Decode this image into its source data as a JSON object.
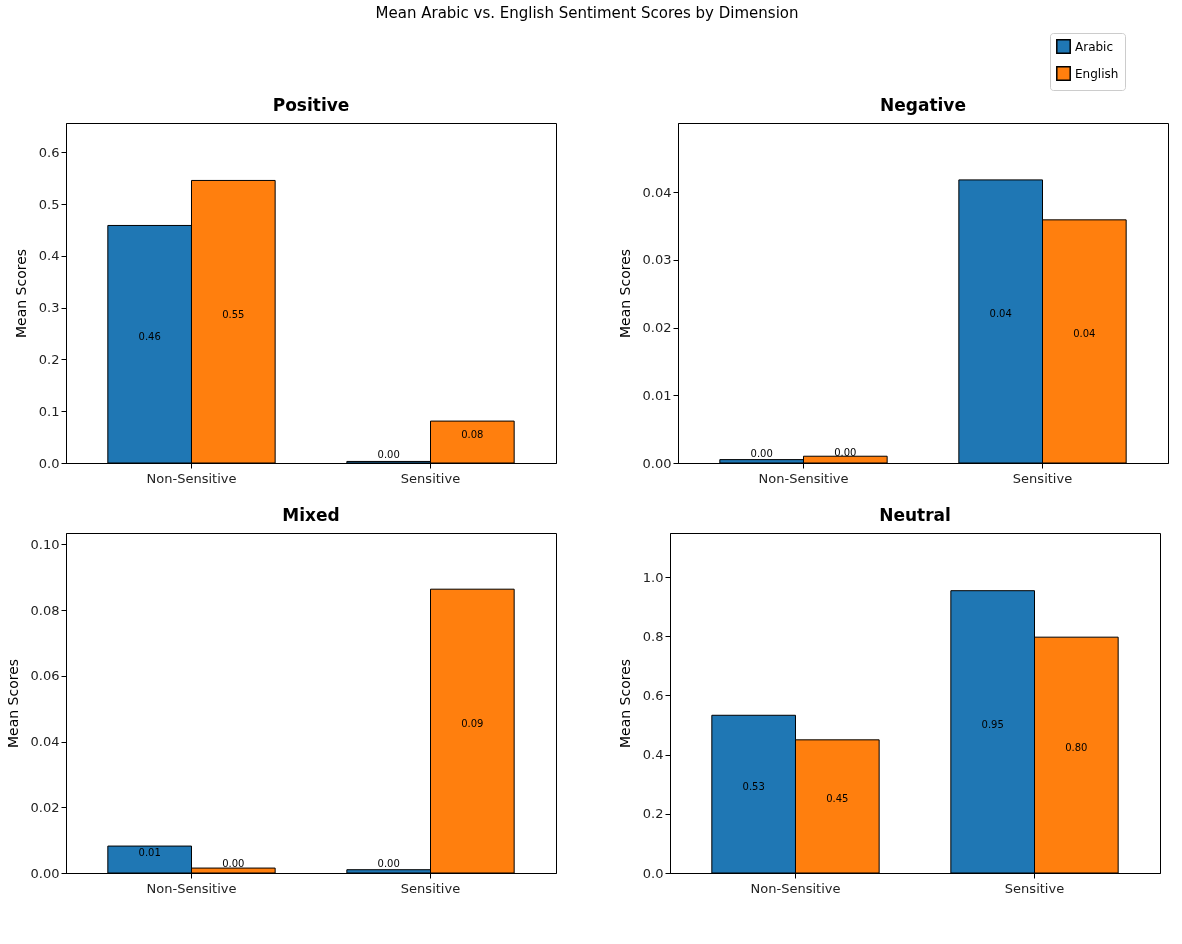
{
  "chart_data": [
    {
      "type": "bar",
      "title": "Positive",
      "annotations": [
        "Mean Arabic vs. English Sentiment Scores by Dimension"
      ],
      "ylabel": "Mean Scores",
      "categories": [
        "Non-Sensitive",
        "Sensitive"
      ],
      "legend": "top right",
      "series": [
        {
          "name": "Arabic",
          "color": "#1f77b4",
          "values": [
            0.459,
            0.003
          ],
          "value_labels": [
            "0.46",
            "0.00"
          ]
        },
        {
          "name": "English",
          "color": "#ff7f0e",
          "values": [
            0.546,
            0.081
          ],
          "value_labels": [
            "0.55",
            "0.08"
          ]
        }
      ],
      "ylim": [
        0,
        0.657
      ],
      "yticks": [
        {
          "value": 0,
          "label": "0.0"
        },
        0.1,
        0.2,
        0.3,
        0.4,
        0.5,
        0.6
      ],
      "grid": false
    },
    {
      "type": "bar",
      "title": "Negative",
      "ylabel": "Mean Scores",
      "categories": [
        "Non-Sensitive",
        "Sensitive"
      ],
      "series": [
        {
          "name": "Arabic",
          "color": "#1f77b4",
          "values": [
            0.0005,
            0.0418
          ],
          "value_labels": [
            "0.00",
            "0.04"
          ]
        },
        {
          "name": "English",
          "color": "#ff7f0e",
          "values": [
            0.001,
            0.0359
          ],
          "value_labels": [
            "0.00",
            "0.04"
          ]
        }
      ],
      "ylim": [
        0,
        0.0502
      ],
      "yticks": [
        {
          "value": 0,
          "label": "0.00"
        },
        0.01,
        0.02,
        0.03,
        0.04
      ],
      "grid": false
    },
    {
      "type": "bar",
      "title": "Mixed",
      "ylabel": "Mean Scores",
      "categories": [
        "Non-Sensitive",
        "Sensitive"
      ],
      "series": [
        {
          "name": "Arabic",
          "color": "#1f77b4",
          "values": [
            0.0082,
            0.001
          ],
          "value_labels": [
            "0.01",
            "0.00"
          ]
        },
        {
          "name": "English",
          "color": "#ff7f0e",
          "values": [
            0.0015,
            0.0864
          ],
          "value_labels": [
            "0.00",
            "0.09"
          ]
        }
      ],
      "ylim": [
        0,
        0.1035
      ],
      "yticks": [
        {
          "value": 0,
          "label": "0.00"
        },
        0.02,
        0.04,
        0.06,
        0.08,
        {
          "value": 0.1,
          "label": "0.10"
        }
      ],
      "grid": false
    },
    {
      "type": "bar",
      "title": "Neutral",
      "ylabel": "Mean Scores",
      "categories": [
        "Non-Sensitive",
        "Sensitive"
      ],
      "series": [
        {
          "name": "Arabic",
          "color": "#1f77b4",
          "values": [
            0.533,
            0.954
          ],
          "value_labels": [
            "0.53",
            "0.95"
          ]
        },
        {
          "name": "English",
          "color": "#ff7f0e",
          "values": [
            0.45,
            0.797
          ],
          "value_labels": [
            "0.45",
            "0.80"
          ]
        }
      ],
      "ylim": [
        0,
        1.149
      ],
      "yticks": [
        {
          "value": 0,
          "label": "0.0"
        },
        0.2,
        0.4,
        0.6,
        0.8,
        {
          "value": 1,
          "label": "1.0"
        }
      ],
      "grid": false
    }
  ]
}
